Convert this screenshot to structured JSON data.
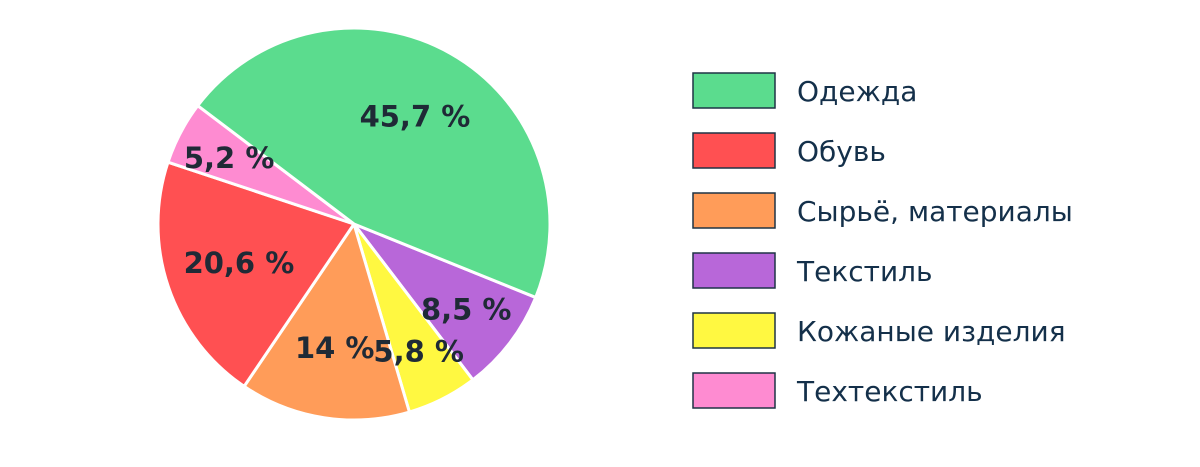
{
  "chart_data": {
    "type": "pie",
    "categories": [
      "Одежда",
      "Обувь",
      "Сырьё, материалы",
      "Текстиль",
      "Кожаные изделия",
      "Техтекстиль"
    ],
    "values": [
      45.7,
      20.6,
      14,
      8.5,
      5.8,
      5.2
    ],
    "value_labels": [
      "45,7 %",
      "20,6 %",
      "14 %",
      "8,5 %",
      "5,8 %",
      "5,2 %"
    ],
    "colors": [
      "#5bdc8e",
      "#ff5052",
      "#ff9c59",
      "#b867d9",
      "#fff841",
      "#fe8bd1"
    ],
    "legend": "right",
    "title": ""
  }
}
